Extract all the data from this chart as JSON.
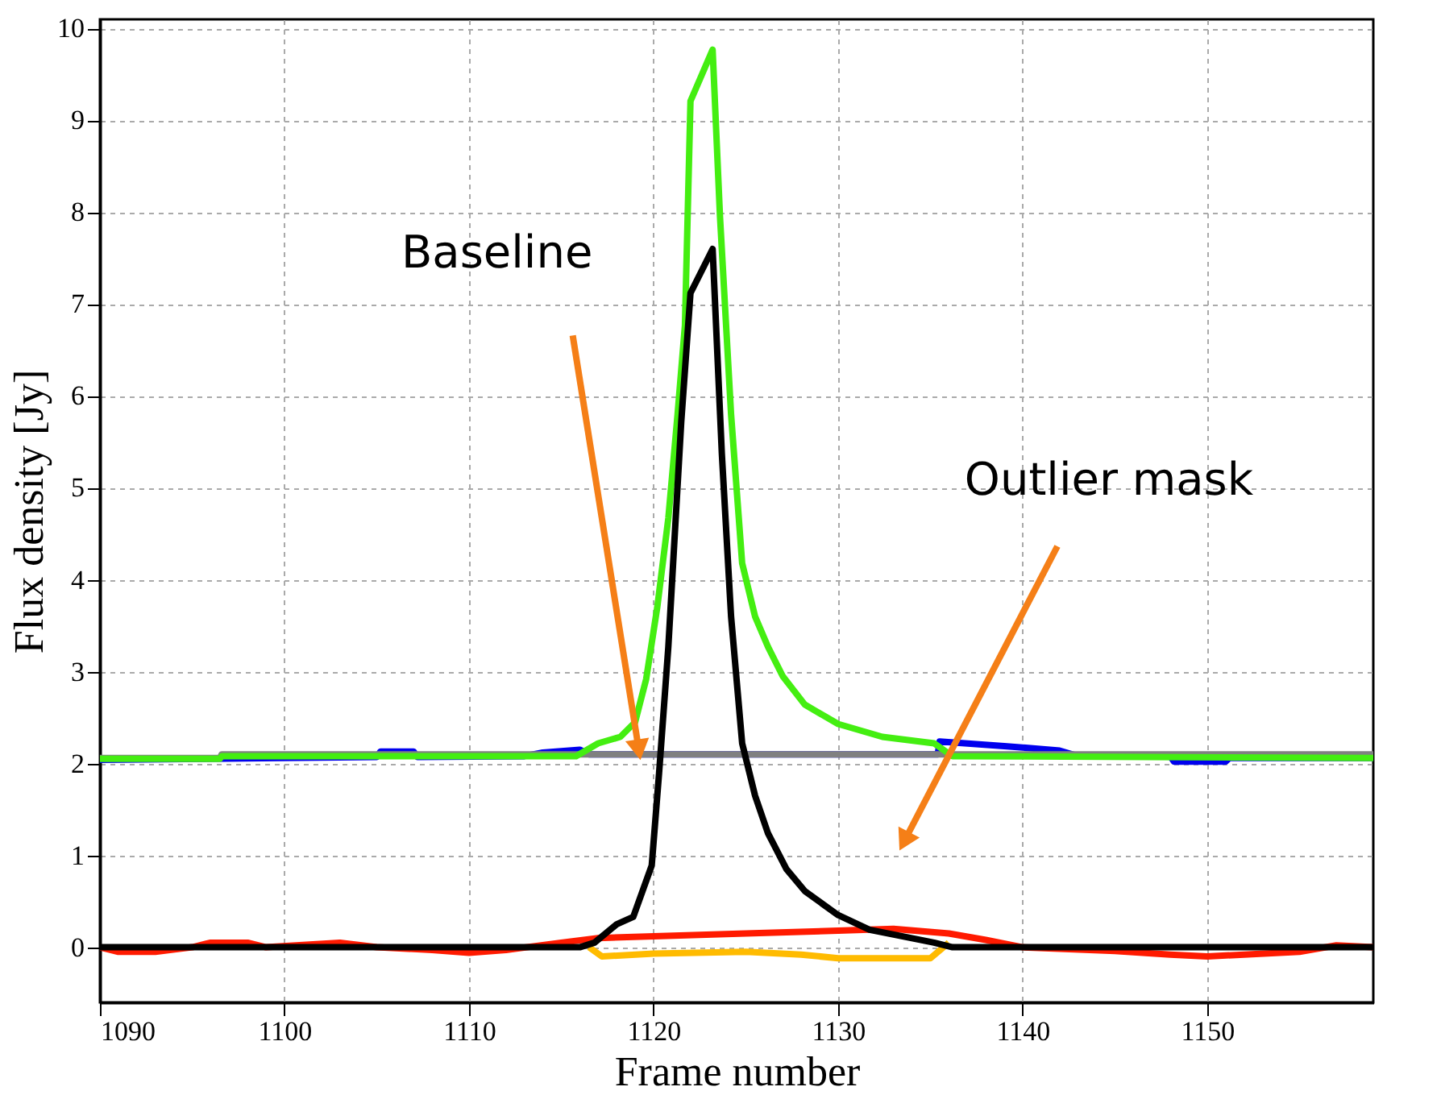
{
  "chart_data": {
    "type": "line",
    "xlabel": "Frame number",
    "ylabel": "Flux density [Jy]",
    "xlim": [
      1090,
      1159
    ],
    "ylim": [
      -0.6,
      10.1
    ],
    "xticks": [
      1090,
      1100,
      1110,
      1120,
      1130,
      1140,
      1150
    ],
    "yticks": [
      0,
      1,
      2,
      3,
      4,
      5,
      6,
      7,
      8,
      9,
      10
    ],
    "grid": true,
    "marker": "none",
    "line_style": "solid",
    "series": [
      {
        "color": "#0000ee",
        "x": [
          1090,
          1105,
          1105.2,
          1107,
          1107.2,
          1113,
          1114,
          1116,
          1116.5,
          1135.4,
          1135.5,
          1139,
          1142,
          1143,
          1148,
          1148.2,
          1151,
          1151.2,
          1159
        ],
        "values": [
          2.04,
          2.07,
          2.13,
          2.13,
          2.07,
          2.08,
          2.12,
          2.15,
          2.1,
          2.1,
          2.24,
          2.19,
          2.14,
          2.08,
          2.08,
          2.02,
          2.02,
          2.06,
          2.06
        ]
      },
      {
        "color": "#808080",
        "x": [
          1090,
          1096.5,
          1096.6,
          1159
        ],
        "values": [
          2.06,
          2.06,
          2.1,
          2.1
        ]
      },
      {
        "color": "#44ee11",
        "x": [
          1090,
          1096.5,
          1096.6,
          1115.8,
          1117,
          1118.2,
          1119,
          1119.6,
          1120.2,
          1120.8,
          1121.3,
          1121.7,
          1122,
          1123.2,
          1123.6,
          1124.2,
          1124.8,
          1125.5,
          1126.2,
          1127,
          1128.2,
          1130,
          1132.4,
          1135.2,
          1136.2,
          1159
        ],
        "values": [
          2.05,
          2.05,
          2.08,
          2.08,
          2.22,
          2.29,
          2.45,
          2.92,
          3.7,
          4.67,
          5.8,
          6.77,
          9.21,
          9.77,
          7.95,
          5.8,
          4.18,
          3.6,
          3.27,
          2.95,
          2.64,
          2.43,
          2.29,
          2.22,
          2.08,
          2.06
        ]
      },
      {
        "color": "#ff1a00",
        "x": [
          1090,
          1091,
          1093,
          1095,
          1096,
          1098,
          1099,
          1103,
          1105,
          1108,
          1110,
          1112,
          1115,
          1117,
          1120,
          1125,
          1130,
          1133,
          1136,
          1138,
          1140,
          1145,
          1148,
          1150,
          1152,
          1155,
          1157,
          1159
        ],
        "values": [
          0,
          -0.05,
          -0.05,
          0,
          0.05,
          0.05,
          0,
          0.05,
          0,
          -0.03,
          -0.06,
          -0.03,
          0.05,
          0.1,
          0.12,
          0.15,
          0.18,
          0.2,
          0.15,
          0.08,
          0,
          -0.04,
          -0.08,
          -0.1,
          -0.08,
          -0.05,
          0.02,
          0
        ]
      },
      {
        "color": "#ffbb00",
        "x": [
          1116.5,
          1117.2,
          1120,
          1125,
          1128,
          1130,
          1135,
          1136
        ],
        "values": [
          0,
          -0.1,
          -0.07,
          -0.05,
          -0.08,
          -0.12,
          -0.12,
          0.05
        ]
      },
      {
        "color": "#000000",
        "x": [
          1090,
          1116,
          1116.8,
          1118,
          1118.9,
          1119.9,
          1120.3,
          1120.8,
          1121.5,
          1122,
          1123.2,
          1123.7,
          1124.2,
          1124.8,
          1125.5,
          1126.2,
          1127.2,
          1128.2,
          1130,
          1131.7,
          1135.2,
          1136.2,
          1159
        ],
        "values": [
          0,
          0,
          0.05,
          0.25,
          0.33,
          0.89,
          1.9,
          3.27,
          5.72,
          7.12,
          7.6,
          5.37,
          3.6,
          2.22,
          1.65,
          1.24,
          0.85,
          0.61,
          0.35,
          0.19,
          0.05,
          0,
          0
        ]
      }
    ],
    "annotations": [
      {
        "text": "Baseline",
        "x": 1119.2,
        "y": 2.15
      },
      "Outlier mask"
    ]
  }
}
